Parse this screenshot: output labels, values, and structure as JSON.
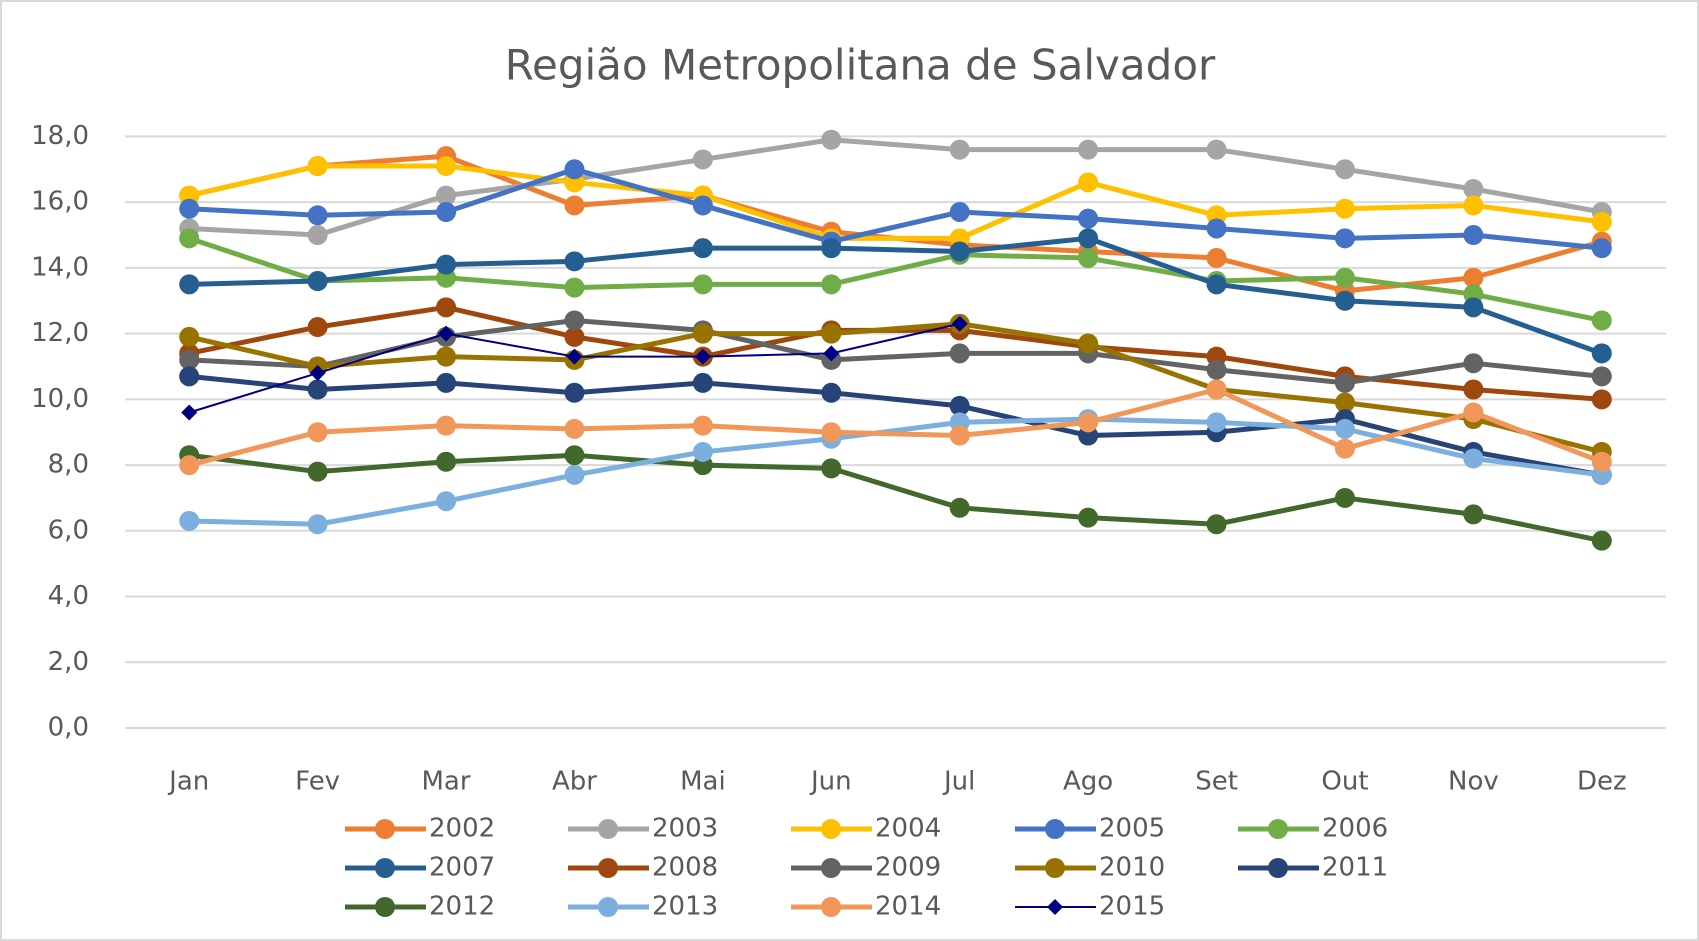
{
  "chart_data": {
    "type": "line",
    "title": "Região Metropolitana de Salvador",
    "categories": [
      "Jan",
      "Fev",
      "Mar",
      "Abr",
      "Mai",
      "Jun",
      "Jul",
      "Ago",
      "Set",
      "Out",
      "Nov",
      "Dez"
    ],
    "ylim": [
      0,
      18.5
    ],
    "yticks": [
      {
        "value": 0,
        "label": "0,0"
      },
      {
        "value": 2,
        "label": "2,0"
      },
      {
        "value": 4,
        "label": "4,0"
      },
      {
        "value": 6,
        "label": "6,0"
      },
      {
        "value": 8,
        "label": "8,0"
      },
      {
        "value": 10,
        "label": "10,0"
      },
      {
        "value": 12,
        "label": "12,0"
      },
      {
        "value": 14,
        "label": "14,0"
      },
      {
        "value": 16,
        "label": "16,0"
      },
      {
        "value": 18,
        "label": "18,0"
      }
    ],
    "grid": true,
    "legend": "bottom",
    "series": [
      {
        "name": "2002",
        "color": "#ED7D31",
        "marker": "circle",
        "line_width": 5,
        "values": [
          16.2,
          17.1,
          17.4,
          15.9,
          16.2,
          15.1,
          14.7,
          14.5,
          14.3,
          13.3,
          13.7,
          14.8
        ]
      },
      {
        "name": "2003",
        "color": "#A5A5A5",
        "marker": "circle",
        "line_width": 5,
        "values": [
          15.2,
          15.0,
          16.2,
          16.7,
          17.3,
          17.9,
          17.6,
          17.6,
          17.6,
          17.0,
          16.4,
          15.7
        ]
      },
      {
        "name": "2004",
        "color": "#FFC000",
        "marker": "circle",
        "line_width": 5,
        "values": [
          16.2,
          17.1,
          17.1,
          16.6,
          16.2,
          14.9,
          14.9,
          16.6,
          15.6,
          15.8,
          15.9,
          15.4
        ]
      },
      {
        "name": "2005",
        "color": "#4472C4",
        "marker": "circle",
        "line_width": 5,
        "values": [
          15.8,
          15.6,
          15.7,
          17.0,
          15.9,
          14.8,
          15.7,
          15.5,
          15.2,
          14.9,
          15.0,
          14.6
        ]
      },
      {
        "name": "2006",
        "color": "#70AD47",
        "marker": "circle",
        "line_width": 5,
        "values": [
          14.9,
          13.6,
          13.7,
          13.4,
          13.5,
          13.5,
          14.4,
          14.3,
          13.6,
          13.7,
          13.2,
          12.4
        ]
      },
      {
        "name": "2007",
        "color": "#255E91",
        "marker": "circle",
        "line_width": 5,
        "values": [
          13.5,
          13.6,
          14.1,
          14.2,
          14.6,
          14.6,
          14.5,
          14.9,
          13.5,
          13.0,
          12.8,
          11.4
        ]
      },
      {
        "name": "2008",
        "color": "#9E480E",
        "marker": "circle",
        "line_width": 5,
        "values": [
          11.4,
          12.2,
          12.8,
          11.9,
          11.3,
          12.1,
          12.1,
          11.6,
          11.3,
          10.7,
          10.3,
          10.0
        ]
      },
      {
        "name": "2009",
        "color": "#636363",
        "marker": "circle",
        "line_width": 5,
        "values": [
          11.2,
          11.0,
          11.9,
          12.4,
          12.1,
          11.2,
          11.4,
          11.4,
          10.9,
          10.5,
          11.1,
          10.7
        ]
      },
      {
        "name": "2010",
        "color": "#997300",
        "marker": "circle",
        "line_width": 5,
        "values": [
          11.9,
          11.0,
          11.3,
          11.2,
          12.0,
          12.0,
          12.3,
          11.7,
          10.3,
          9.9,
          9.4,
          8.4
        ]
      },
      {
        "name": "2011",
        "color": "#264478",
        "marker": "circle",
        "line_width": 5,
        "values": [
          10.7,
          10.3,
          10.5,
          10.2,
          10.5,
          10.2,
          9.8,
          8.9,
          9.0,
          9.4,
          8.4,
          7.7
        ]
      },
      {
        "name": "2012",
        "color": "#43682B",
        "marker": "circle",
        "line_width": 5,
        "values": [
          8.3,
          7.8,
          8.1,
          8.3,
          8.0,
          7.9,
          6.7,
          6.4,
          6.2,
          7.0,
          6.5,
          5.7
        ]
      },
      {
        "name": "2013",
        "color": "#7CAFDD",
        "marker": "circle",
        "line_width": 5,
        "values": [
          6.3,
          6.2,
          6.9,
          7.7,
          8.4,
          8.8,
          9.3,
          9.4,
          9.3,
          9.1,
          8.2,
          7.7
        ]
      },
      {
        "name": "2014",
        "color": "#F1975A",
        "marker": "circle",
        "line_width": 5,
        "values": [
          8.0,
          9.0,
          9.2,
          9.1,
          9.2,
          9.0,
          8.9,
          9.3,
          10.3,
          8.5,
          9.6,
          8.1
        ]
      },
      {
        "name": "2015",
        "color": "#000080",
        "marker": "diamond",
        "line_width": 2,
        "values": [
          9.6,
          10.8,
          12.0,
          11.3,
          11.3,
          11.4,
          12.3,
          null,
          null,
          null,
          null,
          null
        ]
      }
    ]
  }
}
